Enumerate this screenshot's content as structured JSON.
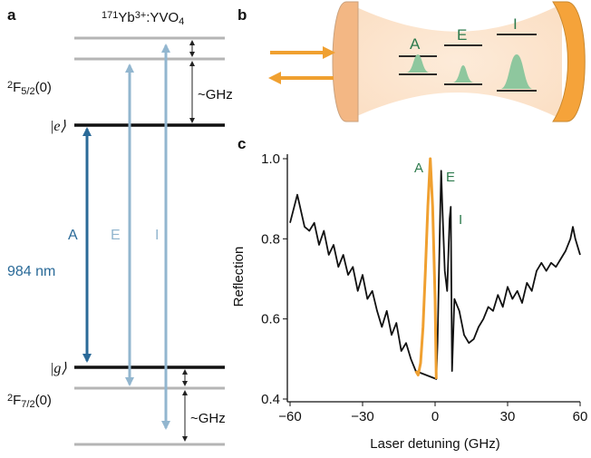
{
  "panel_a": {
    "label": "a",
    "title": [
      {
        "t": "171",
        "s": "sup"
      },
      {
        "t": "Yb"
      },
      {
        "t": "3+",
        "s": "sup"
      },
      {
        "t": ":YVO"
      },
      {
        "t": "4",
        "s": "sub"
      }
    ],
    "upper_state": [
      {
        "t": "2",
        "s": "sup"
      },
      {
        "t": "F"
      },
      {
        "t": "5/2",
        "s": "sub"
      },
      {
        "t": "(0)"
      }
    ],
    "lower_state": [
      {
        "t": "2",
        "s": "sup"
      },
      {
        "t": "F"
      },
      {
        "t": "7/2",
        "s": "sub"
      },
      {
        "t": "(0)"
      }
    ],
    "excited": "|e⟩",
    "ground": "|g⟩",
    "transitions": [
      "A",
      "E",
      "I"
    ],
    "wavelength": "984 nm",
    "splitting_upper": "~GHz",
    "splitting_lower": "~GHz"
  },
  "panel_b": {
    "label": "b",
    "transitions": [
      "A",
      "E",
      "I"
    ]
  },
  "chart_data": {
    "type": "line",
    "panel_label": "c",
    "x_label": "Laser detuning (GHz)",
    "y_label": "Reflection",
    "xlim": [
      -60,
      60
    ],
    "ylim": [
      0.4,
      1.0
    ],
    "xticks": [
      {
        "value": -60,
        "label": "−60"
      },
      {
        "value": -30,
        "label": "−30"
      },
      0,
      30,
      60
    ],
    "yticks": [
      0.4,
      0.6,
      0.8,
      {
        "value": 1,
        "label": "1.0"
      }
    ],
    "annotations": [
      "A",
      "E",
      "I"
    ],
    "series": [
      {
        "color": "#111111",
        "x": [
          -60,
          -57,
          -54,
          -52,
          -50,
          -48,
          -46,
          -44,
          -42,
          -40,
          -38,
          -36,
          -34,
          -32,
          -30,
          -28,
          -26,
          -24,
          -22,
          -20,
          -18,
          -16,
          -14,
          -12,
          -10,
          -8,
          0.5,
          1,
          2,
          2.5,
          3,
          4,
          5,
          6,
          6.5,
          7,
          8,
          10,
          12,
          14,
          16,
          18,
          20,
          22,
          24,
          26,
          28,
          30,
          32,
          34,
          36,
          38,
          40,
          42,
          44,
          46,
          48,
          50,
          52,
          54,
          56,
          57,
          58,
          60
        ],
        "values": [
          0.84,
          0.91,
          0.83,
          0.82,
          0.84,
          0.785,
          0.82,
          0.76,
          0.785,
          0.73,
          0.76,
          0.71,
          0.73,
          0.67,
          0.71,
          0.65,
          0.67,
          0.62,
          0.58,
          0.62,
          0.56,
          0.59,
          0.52,
          0.54,
          0.5,
          0.47,
          0.45,
          0.54,
          0.83,
          0.97,
          0.88,
          0.72,
          0.67,
          0.85,
          0.88,
          0.47,
          0.65,
          0.62,
          0.56,
          0.54,
          0.55,
          0.58,
          0.6,
          0.63,
          0.62,
          0.66,
          0.63,
          0.68,
          0.65,
          0.67,
          0.64,
          0.69,
          0.67,
          0.72,
          0.74,
          0.72,
          0.74,
          0.73,
          0.75,
          0.77,
          0.8,
          0.83,
          0.8,
          0.76
        ]
      },
      {
        "color": "#f0a030",
        "x": [
          -8,
          -7,
          -6,
          -5,
          -4,
          -3,
          -2,
          -1,
          0,
          0.5
        ],
        "values": [
          0.47,
          0.46,
          0.49,
          0.58,
          0.72,
          0.88,
          1.0,
          0.88,
          0.65,
          0.45
        ]
      }
    ]
  }
}
